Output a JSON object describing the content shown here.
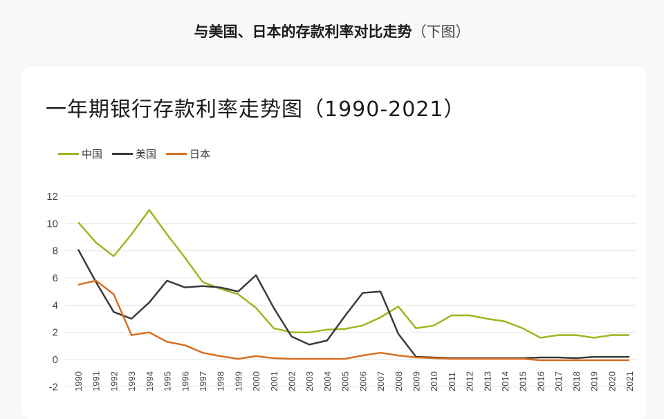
{
  "header": {
    "title": "与美国、日本的存款利率对比走势",
    "subtitle": "（下图）"
  },
  "chart_data": {
    "type": "line",
    "title": "一年期银行存款利率走势图（1990-2021）",
    "xlabel": "",
    "ylabel": "",
    "ylim": [
      -2,
      12
    ],
    "yticks": [
      12,
      10,
      8,
      6,
      4,
      2,
      0,
      -2
    ],
    "grid": true,
    "legend_position": "top-left",
    "categories": [
      "1990",
      "1991",
      "1992",
      "1993",
      "1994",
      "1995",
      "1996",
      "1997",
      "1998",
      "1999",
      "2000",
      "2001",
      "2002",
      "2003",
      "2004",
      "2005",
      "2006",
      "2007",
      "2008",
      "2009",
      "2010",
      "2011",
      "2012",
      "2013",
      "2014",
      "2015",
      "2016",
      "2017",
      "2018",
      "2019",
      "2020",
      "2021"
    ],
    "series": [
      {
        "name": "中国",
        "color": "#9bb71f",
        "values": [
          10.1,
          8.6,
          7.6,
          9.2,
          11.0,
          9.2,
          7.5,
          5.7,
          5.2,
          4.8,
          3.8,
          2.3,
          2.0,
          2.0,
          2.2,
          2.25,
          2.5,
          3.1,
          3.9,
          2.3,
          2.5,
          3.25,
          3.25,
          3.0,
          2.8,
          2.3,
          1.6,
          1.8,
          1.8,
          1.6,
          1.8,
          1.8
        ]
      },
      {
        "name": "美国",
        "color": "#3a3a3a",
        "values": [
          8.1,
          5.7,
          3.5,
          3.0,
          4.2,
          5.8,
          5.3,
          5.4,
          5.3,
          5.0,
          6.2,
          3.8,
          1.7,
          1.1,
          1.4,
          3.2,
          4.9,
          5.0,
          1.9,
          0.2,
          0.15,
          0.1,
          0.1,
          0.1,
          0.1,
          0.1,
          0.15,
          0.15,
          0.1,
          0.2,
          0.2,
          0.2
        ]
      },
      {
        "name": "日本",
        "color": "#d86f22",
        "values": [
          5.5,
          5.8,
          4.8,
          1.8,
          2.0,
          1.3,
          1.05,
          0.5,
          0.25,
          0.05,
          0.25,
          0.1,
          0.05,
          0.05,
          0.05,
          0.05,
          0.3,
          0.5,
          0.3,
          0.15,
          0.1,
          0.05,
          0.05,
          0.05,
          0.05,
          0.05,
          -0.05,
          -0.05,
          -0.05,
          -0.05,
          -0.05,
          -0.05
        ]
      }
    ]
  }
}
